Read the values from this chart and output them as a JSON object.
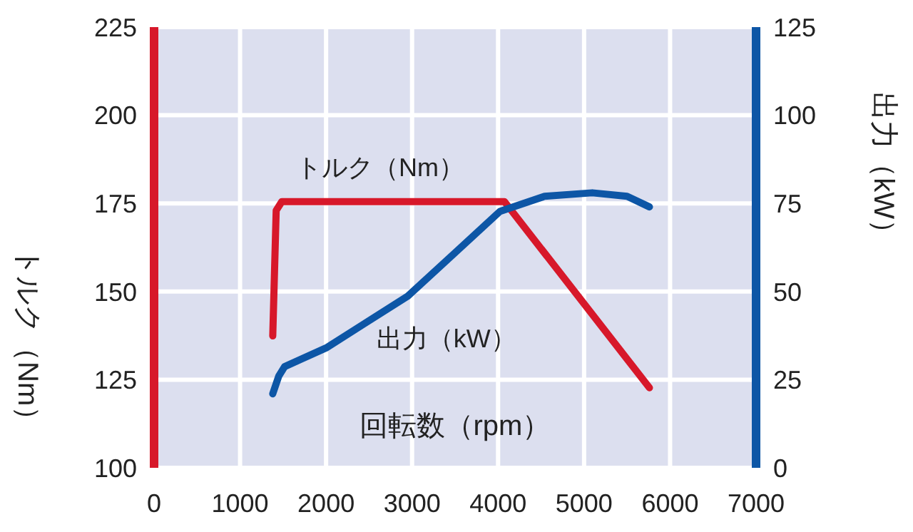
{
  "chart_data": {
    "type": "line",
    "xlabel": "回転数（rpm）",
    "ylabel": "トルク（Nm）",
    "y2label": "出力（kW）",
    "xlim": [
      0,
      7000
    ],
    "xticks": [
      0,
      1000,
      2000,
      3000,
      4000,
      5000,
      6000,
      7000
    ],
    "ylim": [
      100,
      225
    ],
    "yticks": [
      100,
      125,
      150,
      175,
      200,
      225
    ],
    "y2lim": [
      0,
      125
    ],
    "y2ticks": [
      0,
      25,
      50,
      75,
      100,
      125
    ],
    "grid": true,
    "legend": false,
    "marker": "none",
    "line_style": "solid",
    "series": [
      {
        "name": "トルク（Nm）",
        "color": "#d7182a",
        "x": [
          1380,
          1420,
          1485,
          4075,
          5760
        ],
        "values": [
          137.4,
          173,
          175.5,
          175.5,
          122.7
        ]
      },
      {
        "name": "出力（kW）",
        "color": "#0d56a6",
        "axis": "y2",
        "x": [
          1380,
          1450,
          1518,
          2000,
          2950,
          3500,
          4020,
          4540,
          5095,
          5500,
          5760
        ],
        "values": [
          21,
          26,
          28.7,
          34,
          48.7,
          61,
          72.7,
          77,
          78,
          77,
          74
        ]
      }
    ]
  }
}
